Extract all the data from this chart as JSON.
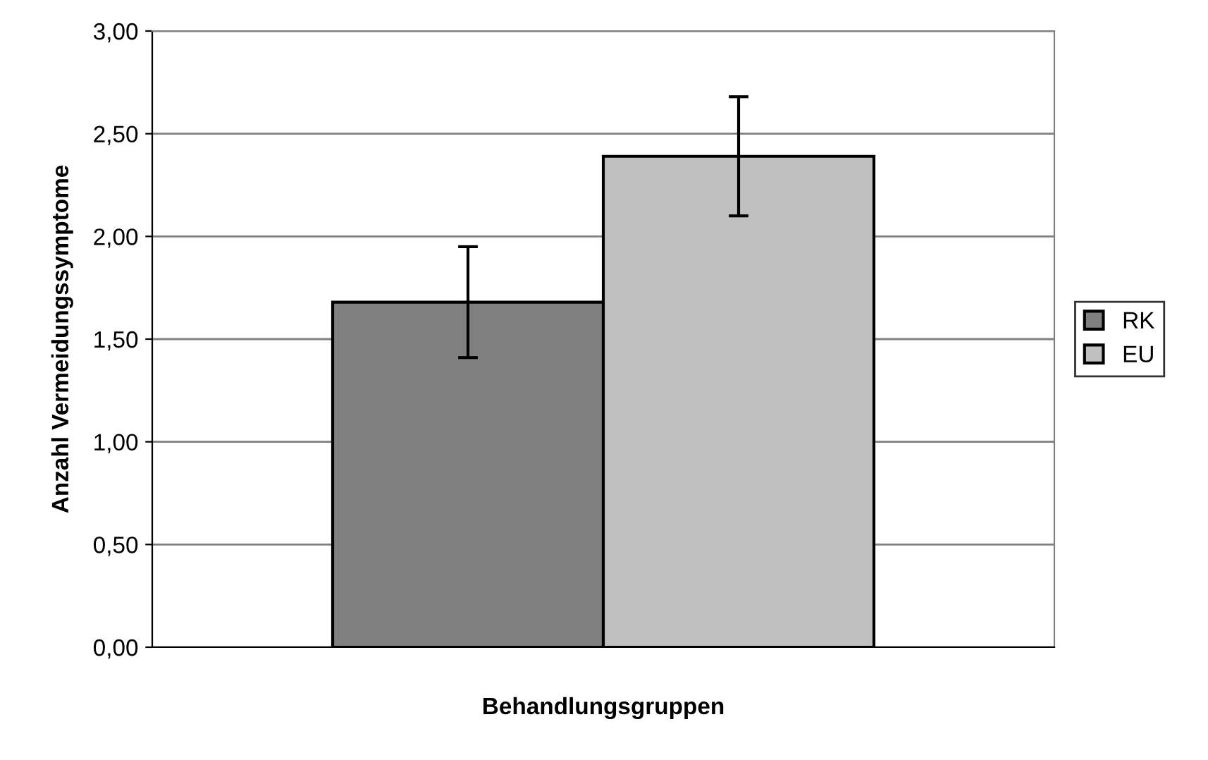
{
  "chart_data": {
    "type": "bar",
    "xlabel": "Behandlungsgruppen",
    "ylabel": "Anzahl Vermeidungssymptome",
    "categories": [
      null
    ],
    "series": [
      {
        "name": "RK",
        "color": "#808080",
        "values": [
          1.68
        ],
        "errors": [
          0.27
        ]
      },
      {
        "name": "EU",
        "color": "#c0c0c0",
        "values": [
          2.39
        ],
        "errors": [
          0.29
        ]
      }
    ],
    "ylim": [
      0,
      3
    ],
    "yticks": [
      {
        "value": 0,
        "label": "0,00"
      },
      {
        "value": 0.5,
        "label": "0,50"
      },
      {
        "value": 1,
        "label": "1,00"
      },
      {
        "value": 1.5,
        "label": "1,50"
      },
      {
        "value": 2,
        "label": "2,00"
      },
      {
        "value": 2.5,
        "label": "2,50"
      },
      {
        "value": 3,
        "label": "3,00"
      }
    ],
    "grid": "y",
    "legend": "right"
  }
}
